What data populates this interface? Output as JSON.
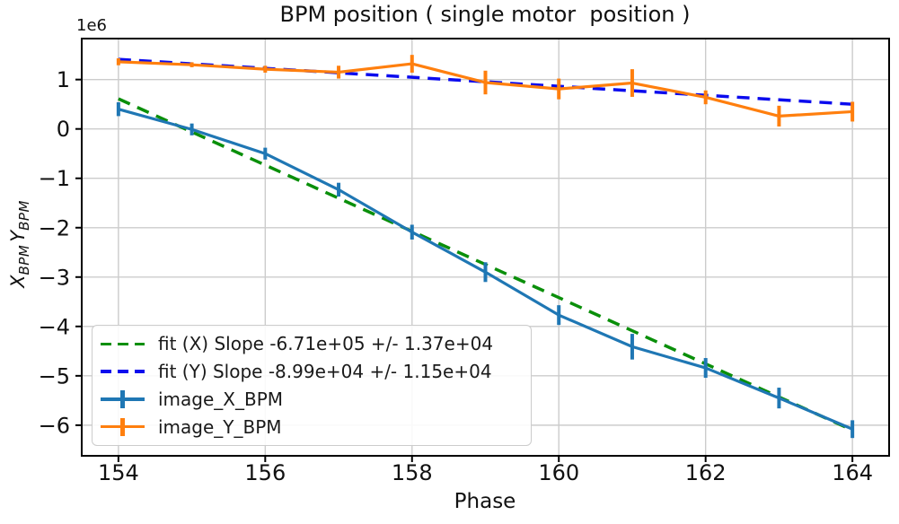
{
  "chart_data": {
    "type": "line",
    "title": "BPM position ( single motor  position )",
    "xlabel": "Phase",
    "ylabel": "X_BPM Y_BPM",
    "ylabel_parts": {
      "x_var": "X",
      "x_sub": "BPM",
      "y_var": "Y",
      "y_sub": "BPM"
    },
    "y_offset_label": "1e6",
    "y_unit": "1e6",
    "grid": true,
    "legend_position": "lower left",
    "xlim": [
      153.5,
      164.5
    ],
    "ylim": [
      -6.62,
      1.83
    ],
    "x_ticks": [
      154,
      156,
      158,
      160,
      162,
      164
    ],
    "x_tick_labels": [
      "154",
      "156",
      "158",
      "160",
      "162",
      "164"
    ],
    "y_ticks": [
      1,
      0,
      -1,
      -2,
      -3,
      -4,
      -5,
      -6
    ],
    "y_tick_labels": [
      "1",
      "0",
      "−1",
      "−2",
      "−3",
      "−4",
      "−5",
      "−6"
    ],
    "x": [
      154,
      155,
      156,
      157,
      158,
      159,
      160,
      161,
      162,
      163,
      164
    ],
    "series": [
      {
        "name": "image_X_BPM",
        "color": "#1f77b4",
        "y": [
          0.4,
          -0.01,
          -0.5,
          -1.23,
          -2.09,
          -2.9,
          -3.77,
          -4.41,
          -4.84,
          -5.45,
          -6.08
        ],
        "yerr": [
          0.14,
          0.12,
          0.12,
          0.14,
          0.15,
          0.2,
          0.2,
          0.26,
          0.2,
          0.21,
          0.18
        ]
      },
      {
        "name": "image_Y_BPM",
        "color": "#ff7f0e",
        "y": [
          1.36,
          1.3,
          1.21,
          1.15,
          1.32,
          0.94,
          0.81,
          0.93,
          0.64,
          0.26,
          0.35
        ],
        "yerr": [
          0.07,
          0.05,
          0.07,
          0.13,
          0.18,
          0.24,
          0.21,
          0.28,
          0.14,
          0.21,
          0.2
        ]
      }
    ],
    "fits": [
      {
        "name": "fit (X)",
        "slope": -671000,
        "slope_err": 13700,
        "color": "#0a8f0a",
        "x": [
          154,
          164
        ],
        "y": [
          0.61,
          -6.1
        ]
      },
      {
        "name": "fit (Y)",
        "slope": -89900,
        "slope_err": 11500,
        "color": "#0b0bee",
        "x": [
          154,
          164
        ],
        "y": [
          1.41,
          0.5
        ]
      }
    ],
    "legend_items": [
      {
        "label": "fit (X) Slope -6.71e+05 +/- 1.37e+04",
        "color": "#0a8f0a",
        "swatch": "dashed"
      },
      {
        "label": "fit (Y) Slope -8.99e+04 +/- 1.15e+04",
        "color": "#0b0bee",
        "swatch": "dashed"
      },
      {
        "label": "image_X_BPM",
        "color": "#1f77b4",
        "swatch": "errorbar"
      },
      {
        "label": "image_Y_BPM",
        "color": "#ff7f0e",
        "swatch": "errorbar"
      }
    ],
    "colors": {
      "grid": "#cccccc",
      "spine": "#000000",
      "text": "#111111"
    }
  }
}
